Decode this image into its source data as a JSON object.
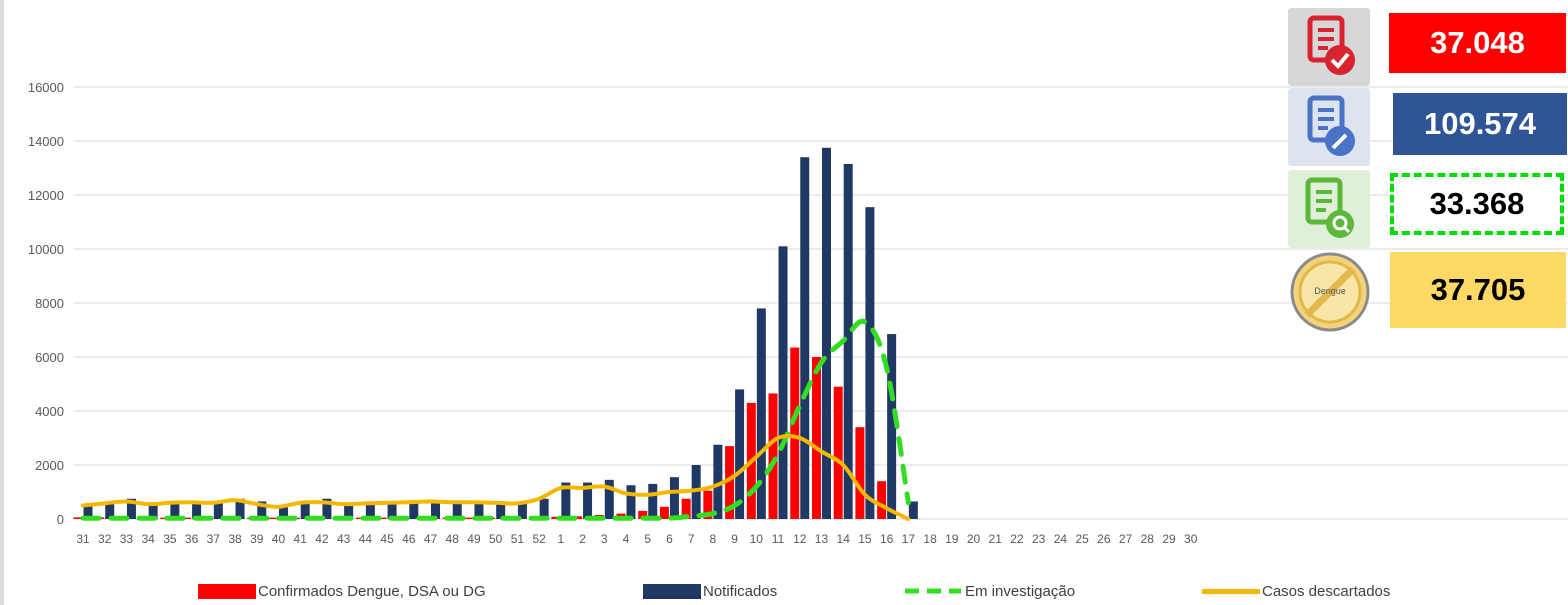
{
  "kpis": [
    {
      "value": "37.048",
      "icon": "report-check-icon",
      "bg": "#ff0000",
      "fg": "#ffffff"
    },
    {
      "value": "109.574",
      "icon": "report-edit-icon",
      "bg": "#2f5597",
      "fg": "#ffffff"
    },
    {
      "value": "33.368",
      "icon": "report-search-icon",
      "bg": "#ffffff",
      "fg": "#000000",
      "border": "#00dd00"
    },
    {
      "value": "37.705",
      "icon": "dengue-prohibited-icon",
      "bg": "#ffd966",
      "fg": "#000000",
      "badge_text": "Dengue"
    }
  ],
  "legend": [
    {
      "label": "Confirmados Dengue, DSA ou DG",
      "color": "#ff0000",
      "style": "bar"
    },
    {
      "label": "Notificados",
      "color": "#1f3864",
      "style": "bar"
    },
    {
      "label": "Em investigação",
      "color": "#33dd22",
      "style": "dashed-line"
    },
    {
      "label": "Casos descartados",
      "color": "#f5b800",
      "style": "line"
    }
  ],
  "chart_data": {
    "type": "bar",
    "categories": [
      "31",
      "32",
      "33",
      "34",
      "35",
      "36",
      "37",
      "38",
      "39",
      "40",
      "41",
      "42",
      "43",
      "44",
      "45",
      "46",
      "47",
      "48",
      "49",
      "50",
      "51",
      "52",
      "1",
      "2",
      "3",
      "4",
      "5",
      "6",
      "7",
      "8",
      "9",
      "10",
      "11",
      "12",
      "13",
      "14",
      "15",
      "16",
      "17",
      "18",
      "19",
      "20",
      "21",
      "22",
      "23",
      "24",
      "25",
      "26",
      "27",
      "28",
      "29",
      "30"
    ],
    "ylim": [
      0,
      16000
    ],
    "yticks": [
      0,
      2000,
      4000,
      6000,
      8000,
      10000,
      12000,
      14000,
      16000
    ],
    "grid": true,
    "legend_position": "bottom",
    "series": [
      {
        "name": "Confirmados Dengue, DSA ou DG",
        "kind": "bar",
        "color": "#ff0000",
        "values": [
          60,
          60,
          60,
          50,
          50,
          50,
          50,
          50,
          50,
          50,
          50,
          50,
          50,
          50,
          50,
          50,
          50,
          50,
          50,
          50,
          50,
          50,
          80,
          100,
          150,
          200,
          300,
          450,
          750,
          1050,
          2700,
          4300,
          4650,
          6350,
          6000,
          4900,
          3400,
          1400,
          null,
          null,
          null,
          null,
          null,
          null,
          null,
          null,
          null,
          null,
          null,
          null,
          null,
          null
        ]
      },
      {
        "name": "Notificados",
        "kind": "bar",
        "color": "#1f3864",
        "values": [
          550,
          600,
          750,
          600,
          600,
          650,
          650,
          750,
          650,
          500,
          650,
          750,
          600,
          650,
          600,
          650,
          700,
          650,
          650,
          650,
          650,
          750,
          1350,
          1350,
          1450,
          1250,
          1300,
          1550,
          2000,
          2750,
          4800,
          7800,
          10100,
          13400,
          13750,
          13150,
          11550,
          6850,
          650,
          null,
          null,
          null,
          null,
          null,
          null,
          null,
          null,
          null,
          null,
          null,
          null,
          null
        ]
      },
      {
        "name": "Em investigação",
        "kind": "line",
        "dashed": true,
        "color": "#33dd22",
        "values": [
          30,
          30,
          30,
          30,
          30,
          30,
          30,
          30,
          30,
          30,
          30,
          30,
          30,
          30,
          30,
          30,
          30,
          30,
          30,
          30,
          30,
          30,
          30,
          30,
          30,
          30,
          30,
          30,
          100,
          200,
          500,
          1200,
          2400,
          4200,
          5800,
          6600,
          7300,
          5600,
          600,
          null,
          null,
          null,
          null,
          null,
          null,
          null,
          null,
          null,
          null,
          null,
          null,
          null
        ]
      },
      {
        "name": "Casos descartados",
        "kind": "line",
        "color": "#f5b800",
        "values": [
          500,
          580,
          650,
          550,
          600,
          620,
          600,
          700,
          550,
          450,
          600,
          620,
          550,
          580,
          600,
          620,
          650,
          620,
          620,
          600,
          580,
          750,
          1150,
          1150,
          1200,
          950,
          900,
          1000,
          1050,
          1200,
          1600,
          2300,
          3000,
          3000,
          2500,
          2000,
          900,
          400,
          0,
          null,
          null,
          null,
          null,
          null,
          null,
          null,
          null,
          null,
          null,
          null,
          null,
          null
        ]
      }
    ]
  }
}
